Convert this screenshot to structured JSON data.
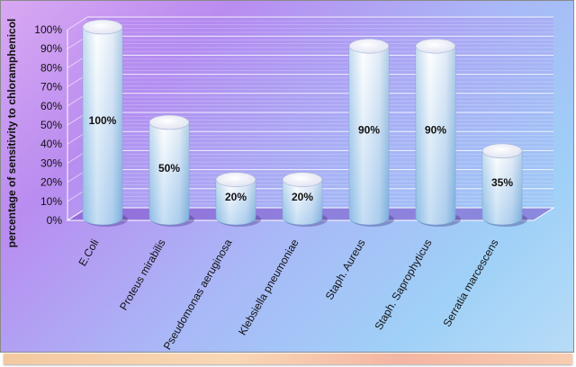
{
  "chart_data": {
    "type": "bar",
    "title": "",
    "xlabel": "",
    "ylabel": "percentage of sensitivity to chloramphenicol",
    "categories": [
      "E.Coli",
      "Proteus mirabilis",
      "Pseudomonas aeruginosa",
      "Klebsiella pneumoniae",
      "Staph. Aureus",
      "Staph. Saprophyticus",
      "Serratia marcescens"
    ],
    "values": [
      100,
      50,
      20,
      20,
      90,
      90,
      35
    ],
    "value_labels": [
      "100%",
      "50%",
      "20%",
      "20%",
      "90%",
      "90%",
      "35%"
    ],
    "y_ticks": [
      "0%",
      "10%",
      "20%",
      "30%",
      "40%",
      "50%",
      "60%",
      "70%",
      "80%",
      "90%",
      "100%"
    ],
    "ylim": [
      0,
      100
    ],
    "grid": true,
    "style": "3d-cylinder"
  }
}
